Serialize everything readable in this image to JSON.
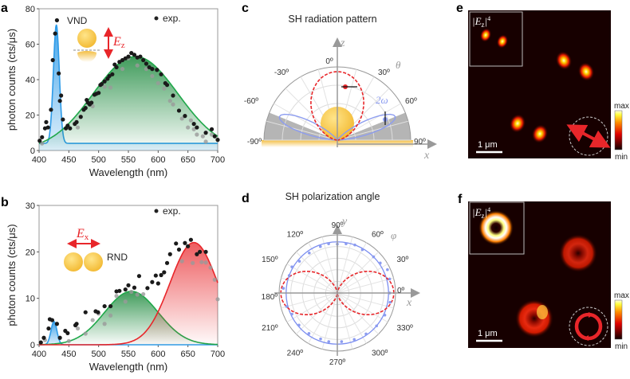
{
  "chart_data": [
    {
      "panel": "a",
      "type": "scatter",
      "xlabel": "Wavelength (nm)",
      "ylabel": "photon counts (cts/μs)",
      "xlim": [
        400,
        700
      ],
      "ylim": [
        0,
        80
      ],
      "xticks": [
        400,
        450,
        500,
        550,
        600,
        650,
        700
      ],
      "yticks": [
        0,
        20,
        40,
        60,
        80
      ],
      "legend": "exp.",
      "annotation": "VND",
      "field_label": "E",
      "field_sub": "z",
      "fits": [
        {
          "name": "blue",
          "color": "#2e9be8",
          "center": 429,
          "amplitude": 67,
          "sigma": 5,
          "baseline": 4
        },
        {
          "name": "green",
          "color": "#1fa84a",
          "center": 562,
          "amplitude": 53,
          "sigma": 71,
          "baseline": 0
        }
      ],
      "points": [
        [
          401,
          5.5
        ],
        [
          405,
          7.5
        ],
        [
          410,
          12.5
        ],
        [
          412,
          16
        ],
        [
          415,
          13
        ],
        [
          420,
          23
        ],
        [
          423,
          51
        ],
        [
          427,
          66
        ],
        [
          430,
          73.5
        ],
        [
          433,
          43.5
        ],
        [
          435,
          28
        ],
        [
          437,
          31
        ],
        [
          440,
          17.5
        ],
        [
          445,
          12.5
        ],
        [
          448,
          14
        ],
        [
          452,
          12.5
        ],
        [
          460,
          15
        ],
        [
          463,
          16
        ],
        [
          470,
          19
        ],
        [
          475,
          23
        ],
        [
          478,
          24
        ],
        [
          480,
          28.5
        ],
        [
          482,
          27
        ],
        [
          485,
          26
        ],
        [
          488,
          27
        ],
        [
          493,
          31.5
        ],
        [
          496,
          32
        ],
        [
          500,
          32.5
        ],
        [
          503,
          37
        ],
        [
          505,
          37.5
        ],
        [
          510,
          39
        ],
        [
          515,
          40.5
        ],
        [
          518,
          42
        ],
        [
          523,
          43
        ],
        [
          527,
          48.5
        ],
        [
          530,
          47
        ],
        [
          535,
          50
        ],
        [
          540,
          51
        ],
        [
          545,
          52
        ],
        [
          550,
          53
        ],
        [
          555,
          55
        ],
        [
          560,
          54
        ],
        [
          565,
          52.5
        ],
        [
          570,
          53
        ],
        [
          575,
          51
        ],
        [
          580,
          49
        ],
        [
          585,
          47
        ],
        [
          590,
          46
        ],
        [
          598,
          45.5
        ],
        [
          605,
          43
        ],
        [
          612,
          38
        ],
        [
          615,
          37
        ],
        [
          625,
          31
        ],
        [
          635,
          22.5
        ],
        [
          645,
          19.5
        ],
        [
          660,
          15
        ],
        [
          665,
          13
        ],
        [
          680,
          10
        ],
        [
          690,
          12
        ],
        [
          695,
          8
        ],
        [
          700,
          6
        ]
      ],
      "points_faded": [
        [
          405,
          4
        ],
        [
          465,
          13
        ],
        [
          490,
          25
        ],
        [
          510,
          36
        ],
        [
          520,
          35.5
        ],
        [
          540,
          46
        ],
        [
          550,
          52
        ],
        [
          565,
          48
        ],
        [
          580,
          46
        ],
        [
          590,
          42
        ],
        [
          600,
          38
        ],
        [
          610,
          35
        ],
        [
          620,
          28
        ],
        [
          625,
          26
        ],
        [
          640,
          18
        ],
        [
          650,
          13
        ],
        [
          655,
          17
        ],
        [
          660,
          12
        ],
        [
          665,
          9
        ],
        [
          675,
          8
        ],
        [
          680,
          5
        ],
        [
          690,
          9
        ]
      ]
    },
    {
      "panel": "b",
      "type": "scatter",
      "xlabel": "Wavelength (nm)",
      "ylabel": "photon counts (cts/μs)",
      "xlim": [
        400,
        700
      ],
      "ylim": [
        0,
        30
      ],
      "xticks": [
        400,
        450,
        500,
        550,
        600,
        650,
        700
      ],
      "yticks": [
        0,
        10,
        20,
        30
      ],
      "legend": "exp.",
      "annotation": "RND",
      "field_label": "E",
      "field_sub": "x",
      "fits": [
        {
          "name": "blue",
          "color": "#2e9be8",
          "center": 425,
          "amplitude": 5,
          "sigma": 5,
          "baseline": 0
        },
        {
          "name": "green",
          "color": "#1fa84a",
          "center": 555,
          "amplitude": 11.5,
          "sigma": 45,
          "baseline": 0
        },
        {
          "name": "red",
          "color": "#e8262a",
          "center": 660,
          "amplitude": 22,
          "sigma": 40,
          "baseline": 0
        }
      ],
      "points": [
        [
          403,
          0.5
        ],
        [
          408,
          1.5
        ],
        [
          416,
          3.5
        ],
        [
          418,
          5.5
        ],
        [
          422,
          5.3
        ],
        [
          430,
          4.5
        ],
        [
          435,
          1.5
        ],
        [
          444,
          3
        ],
        [
          448,
          2.5
        ],
        [
          461,
          4.2
        ],
        [
          463,
          4.5
        ],
        [
          478,
          7
        ],
        [
          495,
          7.2
        ],
        [
          499,
          7
        ],
        [
          510,
          8.3
        ],
        [
          520,
          8.3
        ],
        [
          530,
          11.5
        ],
        [
          535,
          11.6
        ],
        [
          545,
          11.9
        ],
        [
          550,
          12.8
        ],
        [
          560,
          12.3
        ],
        [
          568,
          14.8
        ],
        [
          582,
          12.2
        ],
        [
          590,
          13.5
        ],
        [
          596,
          14.9
        ],
        [
          600,
          13.2
        ],
        [
          605,
          15
        ],
        [
          610,
          15.6
        ],
        [
          615,
          17.6
        ],
        [
          620,
          19.5
        ],
        [
          630,
          21.8
        ],
        [
          635,
          20.5
        ],
        [
          645,
          21.9
        ],
        [
          650,
          21.2
        ],
        [
          655,
          22.6
        ],
        [
          665,
          19.5
        ],
        [
          670,
          20
        ],
        [
          680,
          20
        ]
      ],
      "points_faded": [
        [
          410,
          1
        ],
        [
          450,
          0.8
        ],
        [
          465,
          3.5
        ],
        [
          478,
          2.4
        ],
        [
          490,
          5.3
        ],
        [
          500,
          6.7
        ],
        [
          510,
          4.5
        ],
        [
          520,
          6.3
        ],
        [
          530,
          10.5
        ],
        [
          545,
          9.3
        ],
        [
          555,
          11.4
        ],
        [
          565,
          10.8
        ],
        [
          575,
          10.9
        ],
        [
          640,
          18
        ],
        [
          658,
          17.6
        ],
        [
          673,
          17.8
        ],
        [
          680,
          17.7
        ],
        [
          688,
          16.6
        ],
        [
          695,
          14
        ],
        [
          700,
          9.8
        ]
      ]
    },
    {
      "panel": "c",
      "type": "polar",
      "title": "SH radiation pattern",
      "axis_labels": {
        "vertical": "z",
        "horizontal": "x",
        "angle": "θ"
      },
      "angle_ticks": [
        "-90º",
        "-60º",
        "-30º",
        "0º",
        "30º",
        "60º",
        "90º"
      ],
      "series_label": "2ω"
    },
    {
      "panel": "d",
      "type": "polar",
      "title": "SH polarization angle",
      "axis_labels": {
        "vertical": "y",
        "horizontal": "x",
        "angle": "φ"
      },
      "angle_ticks": [
        "0º",
        "30º",
        "60º",
        "90º",
        "120º",
        "150º",
        "180º",
        "210º",
        "240º",
        "270º",
        "300º",
        "330º"
      ],
      "fit_radius": 0.88,
      "points": [
        [
          0,
          0.9
        ],
        [
          15,
          0.93
        ],
        [
          25,
          0.95
        ],
        [
          35,
          0.9
        ],
        [
          45,
          0.88
        ],
        [
          60,
          0.86
        ],
        [
          70,
          0.88
        ],
        [
          80,
          0.86
        ],
        [
          90,
          0.84
        ],
        [
          100,
          0.86
        ],
        [
          110,
          0.85
        ],
        [
          125,
          0.84
        ],
        [
          140,
          0.85
        ],
        [
          150,
          0.9
        ],
        [
          160,
          0.88
        ],
        [
          175,
          0.93
        ],
        [
          195,
          0.9
        ],
        [
          205,
          0.86
        ],
        [
          220,
          0.86
        ],
        [
          235,
          0.85
        ],
        [
          250,
          0.84
        ],
        [
          260,
          0.85
        ],
        [
          275,
          0.84
        ],
        [
          290,
          0.85
        ],
        [
          305,
          0.86
        ],
        [
          320,
          0.88
        ],
        [
          335,
          0.9
        ],
        [
          350,
          0.92
        ]
      ]
    }
  ],
  "panels": {
    "a": "a",
    "b": "b",
    "c": "c",
    "d": "d",
    "e": "e",
    "f": "f"
  },
  "images": {
    "e": {
      "inset_label": "|E",
      "inset_sub": "z",
      "inset_sup": "4",
      "scale_bar": "1 μm",
      "colorbar_max": "max",
      "colorbar_min": "min",
      "polarization": "linear"
    },
    "f": {
      "inset_label": "|E",
      "inset_sub": "z",
      "inset_sup": "4",
      "scale_bar": "1 μm",
      "colorbar_max": "max",
      "colorbar_min": "min",
      "polarization": "circular"
    }
  }
}
